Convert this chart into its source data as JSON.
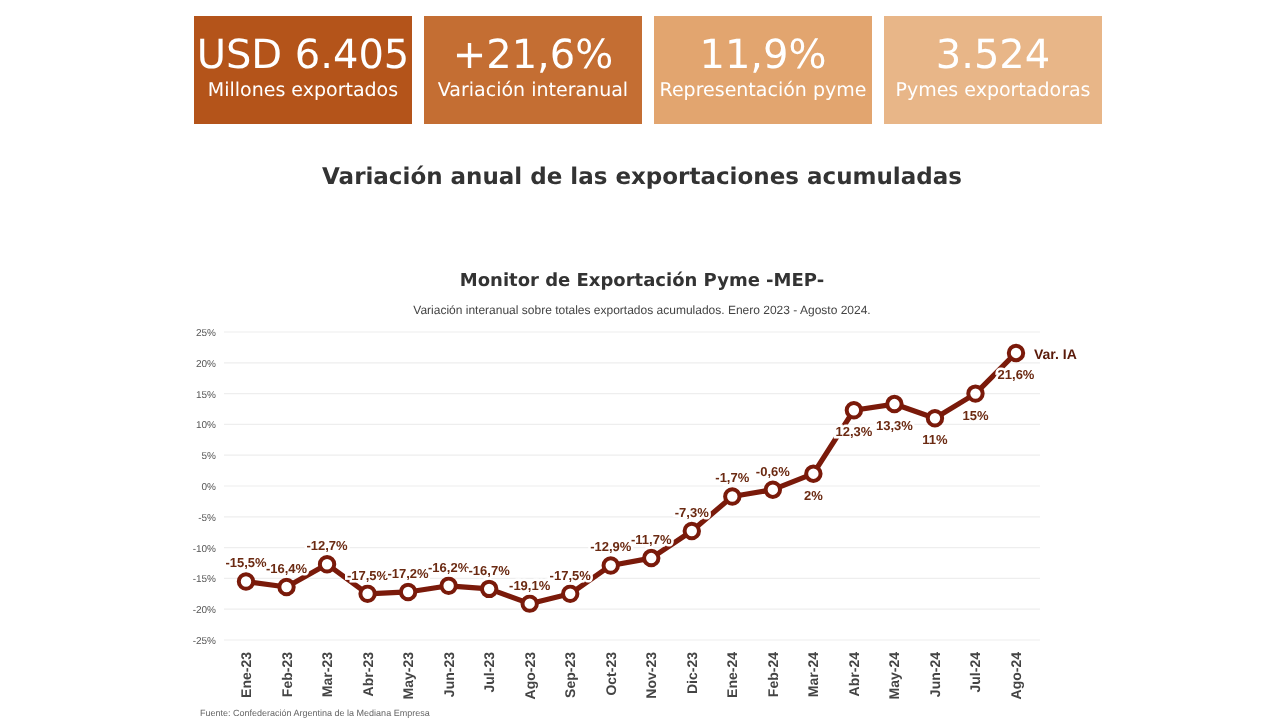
{
  "chart_data": [
    {
      "type": "other",
      "annotations": [
        "USD 6.405",
        "Millones exportados",
        "+21,6%",
        "Variación interanual",
        "11,9%",
        "Representación pyme",
        "3.524",
        "Pymes exportadoras"
      ]
    },
    {
      "type": "line",
      "title": "Variación anual de las exportaciones acumuladas",
      "subtitle": "Monitor de Exportación Pyme -MEP-",
      "annotations": [
        "Variación interanual sobre totales exportados acumulados. Enero 2023 - Agosto 2024.",
        "Fuente: Confederación Argentina de la Mediana Empresa"
      ],
      "categories": [
        "Ene-23",
        "Feb-23",
        "Mar-23",
        "Abr-23",
        "May-23",
        "Jun-23",
        "Jul-23",
        "Ago-23",
        "Sep-23",
        "Oct-23",
        "Nov-23",
        "Dic-23",
        "Ene-24",
        "Feb-24",
        "Mar-24",
        "Abr-24",
        "May-24",
        "Jun-24",
        "Jul-24",
        "Ago-24"
      ],
      "series": [
        {
          "name": "Var. IA",
          "color": "#7a1a0a",
          "values": [
            -15.5,
            -16.4,
            -12.7,
            -17.5,
            -17.2,
            -16.2,
            -16.7,
            -19.1,
            -17.5,
            -12.9,
            -11.7,
            -7.3,
            -1.7,
            -0.6,
            2,
            12.3,
            13.3,
            11,
            15,
            21.6
          ],
          "value_labels": [
            "-15,5%",
            "-16,4%",
            "-12,7%",
            "-17,5%",
            "-17,2%",
            "-16,2%",
            "-16,7%",
            "-19,1%",
            "-17,5%",
            "-12,9%",
            "-11,7%",
            "-7,3%",
            "-1,7%",
            "-0,6%",
            "2%",
            "12,3%",
            "13,3%",
            "11%",
            "15%",
            "21,6%"
          ]
        }
      ],
      "ylim": [
        -25,
        25
      ],
      "yticks": [
        {
          "value": -25,
          "label": "-25%"
        },
        {
          "value": -20,
          "label": "-20%"
        },
        {
          "value": -15,
          "label": "-15%"
        },
        {
          "value": -10,
          "label": "-10%"
        },
        {
          "value": -5,
          "label": "-5%"
        },
        {
          "value": 0,
          "label": "0%"
        },
        {
          "value": 5,
          "label": "5%"
        },
        {
          "value": 10,
          "label": "10%"
        },
        {
          "value": 15,
          "label": "15%"
        },
        {
          "value": 20,
          "label": "20%"
        },
        {
          "value": 25,
          "label": "25%"
        }
      ],
      "grid": "y",
      "legend": false,
      "marker": "circle",
      "line_style": "solid"
    }
  ]
}
